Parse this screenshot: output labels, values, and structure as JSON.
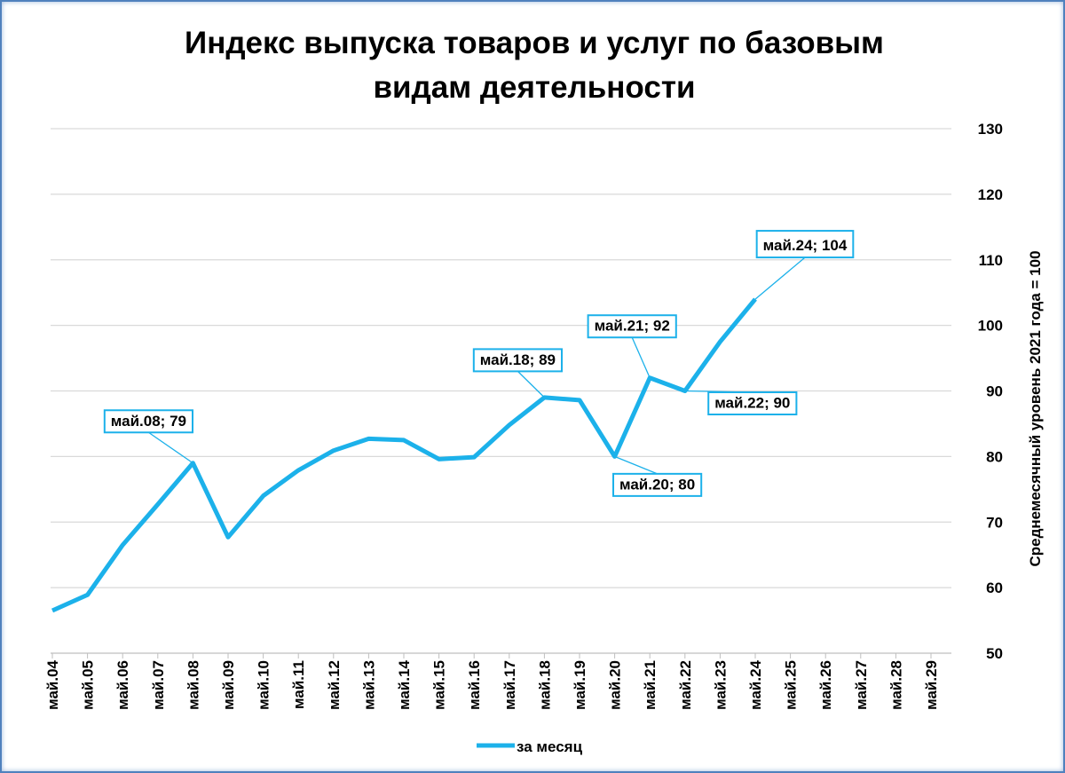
{
  "chart_data": {
    "type": "line",
    "title": "Индекс выпуска товаров и услуг по базовым видам деятельности",
    "y_axis_label": "Среднемесячный уровень 2021 года  = 100",
    "categories": [
      "май.04",
      "май.05",
      "май.06",
      "май.07",
      "май.08",
      "май.09",
      "май.10",
      "май.11",
      "май.12",
      "май.13",
      "май.14",
      "май.15",
      "май.16",
      "май.17",
      "май.18",
      "май.19",
      "май.20",
      "май.21",
      "май.22",
      "май.23",
      "май.24",
      "май.25",
      "май.26",
      "май.27",
      "май.28",
      "май.29"
    ],
    "series": [
      {
        "name": "за месяц",
        "color": "#1cb1ea",
        "values": [
          56.5,
          58.9,
          66.5,
          72.7,
          79,
          67.7,
          74,
          77.9,
          80.9,
          82.7,
          82.5,
          79.6,
          79.9,
          84.8,
          89,
          88.6,
          80,
          92,
          90,
          97.5,
          104,
          null,
          null,
          null,
          null,
          null
        ],
        "value_labels": [
          null,
          null,
          null,
          null,
          "май.08; 79",
          null,
          null,
          null,
          null,
          null,
          null,
          null,
          null,
          null,
          "май.18; 89",
          null,
          "май.20; 80",
          "май.21; 92",
          "май.22; 90",
          null,
          "май.24; 104",
          null,
          null,
          null,
          null,
          null
        ]
      }
    ],
    "ylim": [
      50,
      130
    ],
    "yticks": [
      50,
      60,
      70,
      80,
      90,
      100,
      110,
      120,
      130
    ],
    "y_axis_side": "right",
    "grid": true,
    "legend": "bottom"
  }
}
